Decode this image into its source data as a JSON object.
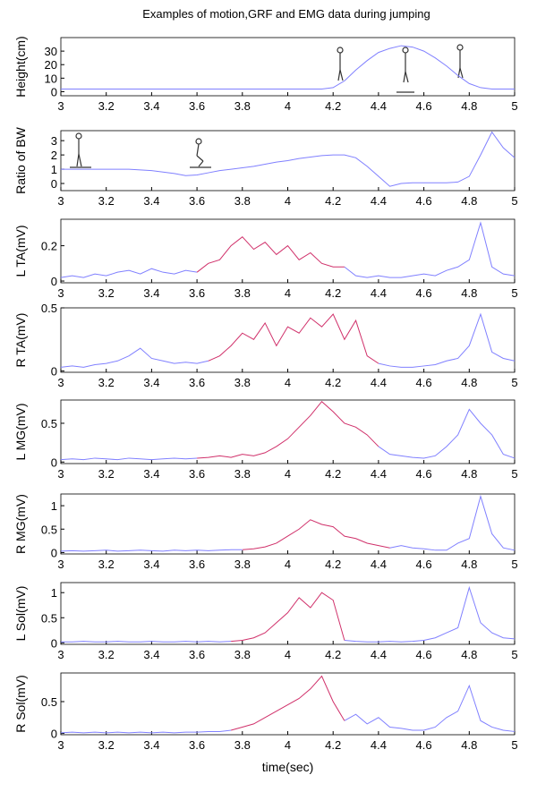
{
  "chart_data": [
    {
      "type": "line",
      "title": "Examples of motion,GRF and EMG data during jumping",
      "ylabel": "Height(cm)",
      "x": [
        3,
        3.05,
        3.1,
        3.15,
        3.2,
        3.25,
        3.3,
        3.35,
        3.4,
        3.45,
        3.5,
        3.55,
        3.6,
        3.65,
        3.7,
        3.75,
        3.8,
        3.85,
        3.9,
        3.95,
        4,
        4.05,
        4.1,
        4.15,
        4.2,
        4.25,
        4.3,
        4.35,
        4.4,
        4.45,
        4.5,
        4.55,
        4.6,
        4.65,
        4.7,
        4.75,
        4.8,
        4.85,
        4.9,
        4.95,
        5
      ],
      "xlim": [
        3,
        5
      ],
      "xticks": [
        3,
        3.2,
        3.4,
        3.6,
        3.8,
        4,
        4.2,
        4.4,
        4.6,
        4.8,
        5
      ],
      "ylim": [
        -3,
        40
      ],
      "yticks": [
        0,
        10,
        20,
        30
      ],
      "series": [
        {
          "color": "#8080ff",
          "values": [
            2,
            2,
            2,
            2,
            2,
            2,
            2,
            2,
            2,
            2,
            2,
            2,
            2,
            2,
            2,
            2,
            2,
            2,
            2,
            2,
            2,
            2,
            2,
            2,
            3,
            8,
            16,
            23,
            29,
            32,
            34,
            33,
            30,
            25,
            19,
            12,
            6,
            3,
            2,
            2,
            2
          ]
        }
      ]
    },
    {
      "type": "line",
      "ylabel": "Ratio of BW",
      "x": [
        3,
        3.05,
        3.1,
        3.15,
        3.2,
        3.25,
        3.3,
        3.35,
        3.4,
        3.45,
        3.5,
        3.55,
        3.6,
        3.65,
        3.7,
        3.75,
        3.8,
        3.85,
        3.9,
        3.95,
        4,
        4.05,
        4.1,
        4.15,
        4.2,
        4.25,
        4.3,
        4.35,
        4.4,
        4.45,
        4.5,
        4.55,
        4.6,
        4.65,
        4.7,
        4.75,
        4.8,
        4.85,
        4.9,
        4.95,
        5
      ],
      "xlim": [
        3,
        5
      ],
      "xticks": [
        3,
        3.2,
        3.4,
        3.6,
        3.8,
        4,
        4.2,
        4.4,
        4.6,
        4.8,
        5
      ],
      "ylim": [
        -0.5,
        3.7
      ],
      "yticks": [
        0,
        1,
        2,
        3
      ],
      "series": [
        {
          "color": "#8080ff",
          "values": [
            1,
            1,
            1,
            1,
            1,
            1,
            1,
            0.95,
            0.9,
            0.8,
            0.7,
            0.55,
            0.6,
            0.75,
            0.9,
            1.0,
            1.1,
            1.2,
            1.35,
            1.5,
            1.6,
            1.75,
            1.85,
            1.95,
            2.0,
            2.0,
            1.8,
            1.2,
            0.5,
            -0.2,
            0,
            0.05,
            0.05,
            0.05,
            0.05,
            0.1,
            0.5,
            2.0,
            3.6,
            2.5,
            1.8
          ]
        }
      ]
    },
    {
      "type": "line",
      "ylabel": "L TA(mV)",
      "x": [
        3,
        3.05,
        3.1,
        3.15,
        3.2,
        3.25,
        3.3,
        3.35,
        3.4,
        3.45,
        3.5,
        3.55,
        3.6,
        3.65,
        3.7,
        3.75,
        3.8,
        3.85,
        3.9,
        3.95,
        4,
        4.05,
        4.1,
        4.15,
        4.2,
        4.25,
        4.3,
        4.35,
        4.4,
        4.45,
        4.5,
        4.55,
        4.6,
        4.65,
        4.7,
        4.75,
        4.8,
        4.85,
        4.9,
        4.95,
        5
      ],
      "xlim": [
        3,
        5
      ],
      "xticks": [
        3,
        3.2,
        3.4,
        3.6,
        3.8,
        4,
        4.2,
        4.4,
        4.6,
        4.8,
        5
      ],
      "ylim": [
        -0.01,
        0.35
      ],
      "yticks": [
        0,
        0.2
      ],
      "series": [
        {
          "color": "#8080ff",
          "values": [
            0.02,
            0.03,
            0.02,
            0.04,
            0.03,
            0.05,
            0.06,
            0.04,
            0.07,
            0.05,
            0.04,
            0.06,
            0.05,
            null,
            null,
            null,
            null,
            null,
            null,
            null,
            null,
            null,
            null,
            null,
            null,
            0.08,
            0.03,
            0.02,
            0.03,
            0.02,
            0.02,
            0.03,
            0.04,
            0.03,
            0.06,
            0.08,
            0.12,
            0.33,
            0.08,
            0.04,
            0.03
          ]
        },
        {
          "color": "#d0306a",
          "values": [
            null,
            null,
            null,
            null,
            null,
            null,
            null,
            null,
            null,
            null,
            null,
            null,
            0.05,
            0.1,
            0.12,
            0.2,
            0.25,
            0.18,
            0.22,
            0.15,
            0.2,
            0.12,
            0.16,
            0.1,
            0.08,
            0.08,
            null,
            null,
            null,
            null,
            null,
            null,
            null,
            null,
            null,
            null,
            null,
            null,
            null,
            null,
            null
          ]
        }
      ]
    },
    {
      "type": "line",
      "ylabel": "R TA(mV)",
      "x": [
        3,
        3.05,
        3.1,
        3.15,
        3.2,
        3.25,
        3.3,
        3.35,
        3.4,
        3.45,
        3.5,
        3.55,
        3.6,
        3.65,
        3.7,
        3.75,
        3.8,
        3.85,
        3.9,
        3.95,
        4,
        4.05,
        4.1,
        4.15,
        4.2,
        4.25,
        4.3,
        4.35,
        4.4,
        4.45,
        4.5,
        4.55,
        4.6,
        4.65,
        4.7,
        4.75,
        4.8,
        4.85,
        4.9,
        4.95,
        5
      ],
      "xlim": [
        3,
        5
      ],
      "xticks": [
        3,
        3.2,
        3.4,
        3.6,
        3.8,
        4,
        4.2,
        4.4,
        4.6,
        4.8,
        5
      ],
      "ylim": [
        -0.01,
        0.5
      ],
      "yticks": [
        0,
        0.5
      ],
      "series": [
        {
          "color": "#8080ff",
          "values": [
            0.03,
            0.04,
            0.03,
            0.05,
            0.06,
            0.08,
            0.12,
            0.18,
            0.1,
            0.08,
            0.06,
            0.07,
            0.06,
            0.08,
            null,
            null,
            null,
            null,
            null,
            null,
            null,
            null,
            null,
            null,
            null,
            null,
            null,
            null,
            0.06,
            0.04,
            0.03,
            0.03,
            0.04,
            0.05,
            0.08,
            0.1,
            0.2,
            0.45,
            0.15,
            0.1,
            0.08
          ]
        },
        {
          "color": "#d0306a",
          "values": [
            null,
            null,
            null,
            null,
            null,
            null,
            null,
            null,
            null,
            null,
            null,
            null,
            null,
            0.08,
            0.12,
            0.2,
            0.3,
            0.25,
            0.38,
            0.2,
            0.35,
            0.3,
            0.42,
            0.35,
            0.45,
            0.25,
            0.4,
            0.12,
            0.06,
            null,
            null,
            null,
            null,
            null,
            null,
            null,
            null,
            null,
            null,
            null,
            null
          ]
        }
      ]
    },
    {
      "type": "line",
      "ylabel": "L MG(mV)",
      "x": [
        3,
        3.05,
        3.1,
        3.15,
        3.2,
        3.25,
        3.3,
        3.35,
        3.4,
        3.45,
        3.5,
        3.55,
        3.6,
        3.65,
        3.7,
        3.75,
        3.8,
        3.85,
        3.9,
        3.95,
        4,
        4.05,
        4.1,
        4.15,
        4.2,
        4.25,
        4.3,
        4.35,
        4.4,
        4.45,
        4.5,
        4.55,
        4.6,
        4.65,
        4.7,
        4.75,
        4.8,
        4.85,
        4.9,
        4.95,
        5
      ],
      "xlim": [
        3,
        5
      ],
      "xticks": [
        3,
        3.2,
        3.4,
        3.6,
        3.8,
        4,
        4.2,
        4.4,
        4.6,
        4.8,
        5
      ],
      "ylim": [
        -0.02,
        0.8
      ],
      "yticks": [
        0,
        0.5
      ],
      "series": [
        {
          "color": "#8080ff",
          "values": [
            0.03,
            0.04,
            0.03,
            0.05,
            0.04,
            0.03,
            0.05,
            0.04,
            0.03,
            0.04,
            0.05,
            0.04,
            0.05,
            null,
            null,
            null,
            null,
            null,
            null,
            null,
            null,
            null,
            null,
            null,
            null,
            null,
            null,
            null,
            0.2,
            0.1,
            0.08,
            0.06,
            0.05,
            0.08,
            0.2,
            0.35,
            0.68,
            0.5,
            0.35,
            0.1,
            0.05
          ]
        },
        {
          "color": "#d0306a",
          "values": [
            null,
            null,
            null,
            null,
            null,
            null,
            null,
            null,
            null,
            null,
            null,
            null,
            0.05,
            0.06,
            0.08,
            0.06,
            0.1,
            0.08,
            0.12,
            0.2,
            0.3,
            0.45,
            0.6,
            0.78,
            0.65,
            0.5,
            0.45,
            0.35,
            0.2,
            null,
            null,
            null,
            null,
            null,
            null,
            null,
            null,
            null,
            null,
            null,
            null
          ]
        }
      ]
    },
    {
      "type": "line",
      "ylabel": "R MG(mV)",
      "x": [
        3,
        3.05,
        3.1,
        3.15,
        3.2,
        3.25,
        3.3,
        3.35,
        3.4,
        3.45,
        3.5,
        3.55,
        3.6,
        3.65,
        3.7,
        3.75,
        3.8,
        3.85,
        3.9,
        3.95,
        4,
        4.05,
        4.1,
        4.15,
        4.2,
        4.25,
        4.3,
        4.35,
        4.4,
        4.45,
        4.5,
        4.55,
        4.6,
        4.65,
        4.7,
        4.75,
        4.8,
        4.85,
        4.9,
        4.95,
        5
      ],
      "xlim": [
        3,
        5
      ],
      "xticks": [
        3,
        3.2,
        3.4,
        3.6,
        3.8,
        4,
        4.2,
        4.4,
        4.6,
        4.8,
        5
      ],
      "ylim": [
        -0.03,
        1.25
      ],
      "yticks": [
        0,
        0.5,
        1
      ],
      "series": [
        {
          "color": "#8080ff",
          "values": [
            0.03,
            0.04,
            0.03,
            0.04,
            0.05,
            0.03,
            0.04,
            0.05,
            0.04,
            0.03,
            0.05,
            0.04,
            0.05,
            0.04,
            0.05,
            0.06,
            0.06,
            null,
            null,
            null,
            null,
            null,
            null,
            null,
            null,
            null,
            null,
            null,
            null,
            0.1,
            0.15,
            0.1,
            0.08,
            0.05,
            0.05,
            0.2,
            0.3,
            1.2,
            0.4,
            0.1,
            0.05
          ]
        },
        {
          "color": "#d0306a",
          "values": [
            null,
            null,
            null,
            null,
            null,
            null,
            null,
            null,
            null,
            null,
            null,
            null,
            null,
            null,
            null,
            null,
            0.06,
            0.08,
            0.12,
            0.2,
            0.35,
            0.5,
            0.7,
            0.6,
            0.55,
            0.35,
            0.3,
            0.2,
            0.15,
            0.1,
            null,
            null,
            null,
            null,
            null,
            null,
            null,
            null,
            null,
            null,
            null
          ]
        }
      ]
    },
    {
      "type": "line",
      "ylabel": "L Sol(mV)",
      "x": [
        3,
        3.05,
        3.1,
        3.15,
        3.2,
        3.25,
        3.3,
        3.35,
        3.4,
        3.45,
        3.5,
        3.55,
        3.6,
        3.65,
        3.7,
        3.75,
        3.8,
        3.85,
        3.9,
        3.95,
        4,
        4.05,
        4.1,
        4.15,
        4.2,
        4.25,
        4.3,
        4.35,
        4.4,
        4.45,
        4.5,
        4.55,
        4.6,
        4.65,
        4.7,
        4.75,
        4.8,
        4.85,
        4.9,
        4.95,
        5
      ],
      "xlim": [
        3,
        5
      ],
      "xticks": [
        3,
        3.2,
        3.4,
        3.6,
        3.8,
        4,
        4.2,
        4.4,
        4.6,
        4.8,
        5
      ],
      "ylim": [
        -0.03,
        1.2
      ],
      "yticks": [
        0,
        0.5,
        1
      ],
      "series": [
        {
          "color": "#8080ff",
          "values": [
            0.02,
            0.02,
            0.03,
            0.02,
            0.02,
            0.03,
            0.02,
            0.02,
            0.03,
            0.02,
            0.02,
            0.03,
            0.02,
            0.03,
            0.02,
            0.03,
            null,
            null,
            null,
            null,
            null,
            null,
            null,
            null,
            null,
            0.05,
            0.03,
            0.02,
            0.02,
            0.03,
            0.02,
            0.03,
            0.05,
            0.1,
            0.2,
            0.3,
            1.1,
            0.4,
            0.2,
            0.1,
            0.08
          ]
        },
        {
          "color": "#d0306a",
          "values": [
            null,
            null,
            null,
            null,
            null,
            null,
            null,
            null,
            null,
            null,
            null,
            null,
            null,
            null,
            null,
            0.03,
            0.05,
            0.1,
            0.2,
            0.4,
            0.6,
            0.9,
            0.7,
            1.0,
            0.85,
            0.05,
            null,
            null,
            null,
            null,
            null,
            null,
            null,
            null,
            null,
            null,
            null,
            null,
            null,
            null,
            null
          ]
        }
      ]
    },
    {
      "type": "line",
      "ylabel": "R Sol(mV)",
      "xlabel": "time(sec)",
      "x": [
        3,
        3.05,
        3.1,
        3.15,
        3.2,
        3.25,
        3.3,
        3.35,
        3.4,
        3.45,
        3.5,
        3.55,
        3.6,
        3.65,
        3.7,
        3.75,
        3.8,
        3.85,
        3.9,
        3.95,
        4,
        4.05,
        4.1,
        4.15,
        4.2,
        4.25,
        4.3,
        4.35,
        4.4,
        4.45,
        4.5,
        4.55,
        4.6,
        4.65,
        4.7,
        4.75,
        4.8,
        4.85,
        4.9,
        4.95,
        5
      ],
      "xlim": [
        3,
        5
      ],
      "xticks": [
        3,
        3.2,
        3.4,
        3.6,
        3.8,
        4,
        4.2,
        4.4,
        4.6,
        4.8,
        5
      ],
      "ylim": [
        -0.02,
        0.95
      ],
      "yticks": [
        0,
        0.5
      ],
      "series": [
        {
          "color": "#8080ff",
          "values": [
            0.01,
            0.02,
            0.01,
            0.02,
            0.01,
            0.02,
            0.01,
            0.02,
            0.01,
            0.02,
            0.01,
            0.02,
            0.02,
            0.03,
            0.03,
            0.05,
            null,
            null,
            null,
            null,
            null,
            null,
            null,
            null,
            null,
            0.2,
            0.3,
            0.15,
            0.25,
            0.1,
            0.08,
            0.05,
            0.05,
            0.1,
            0.25,
            0.35,
            0.75,
            0.2,
            0.1,
            0.05,
            0.03
          ]
        },
        {
          "color": "#d0306a",
          "values": [
            null,
            null,
            null,
            null,
            null,
            null,
            null,
            null,
            null,
            null,
            null,
            null,
            null,
            null,
            null,
            0.05,
            0.1,
            0.15,
            0.25,
            0.35,
            0.45,
            0.55,
            0.7,
            0.9,
            0.5,
            0.2,
            null,
            null,
            null,
            null,
            null,
            null,
            null,
            null,
            null,
            null,
            null,
            null,
            null,
            null,
            null
          ]
        }
      ]
    }
  ]
}
